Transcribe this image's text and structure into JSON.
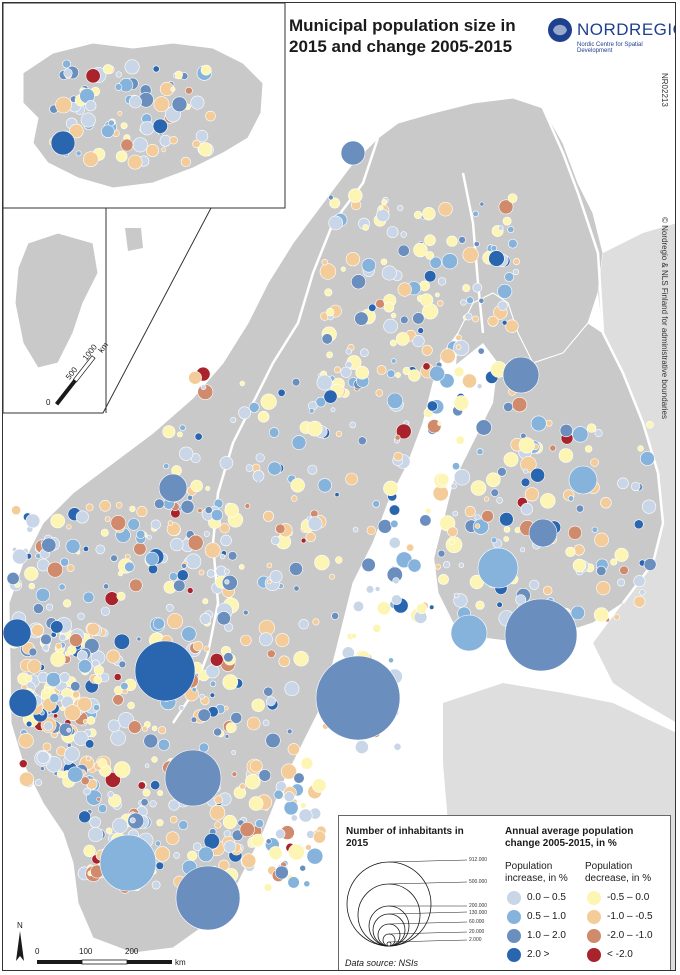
{
  "title": "Municipal population size in 2015 and change 2005-2015",
  "logo": {
    "wordmark": "NORDREGIO",
    "tagline": "Nordic Centre for Spatial Development"
  },
  "map_id": "NR02213",
  "copyright": "© Nordregio & NLS Finland for administrative boundaries",
  "insets": {
    "greenland_scale": {
      "labels": [
        "0",
        "500",
        "1000"
      ],
      "unit": "km"
    }
  },
  "scale_bar": {
    "labels": [
      "0",
      "100",
      "200"
    ],
    "unit": "km"
  },
  "north_arrow": "N",
  "legend": {
    "size_title": "Number of inhabitants in 2015",
    "size_values": [
      "912.000",
      "500.000",
      "200.000",
      "130.000",
      "60.000",
      "20.000",
      "2.000"
    ],
    "color_title": "Annual average population change 2005-2015, in %",
    "increase_label": "Population increase, in %",
    "decrease_label": "Population decrease, in %",
    "increase_classes": [
      "0.0 – 0.5",
      "0.5 – 1.0",
      "1.0 – 2.0",
      "2.0 >"
    ],
    "decrease_classes": [
      "-0.5 –   0.0",
      "-1.0 – -0.5",
      "-2.0 – -1.0",
      "< -2.0"
    ],
    "increase_colors": [
      "#c8d6e8",
      "#86b3dc",
      "#6a8fbf",
      "#2a66b0"
    ],
    "decrease_colors": [
      "#fdf5b3",
      "#f4cc99",
      "#d08a6c",
      "#a8232b"
    ],
    "data_source": "Data source: NSIs"
  }
}
